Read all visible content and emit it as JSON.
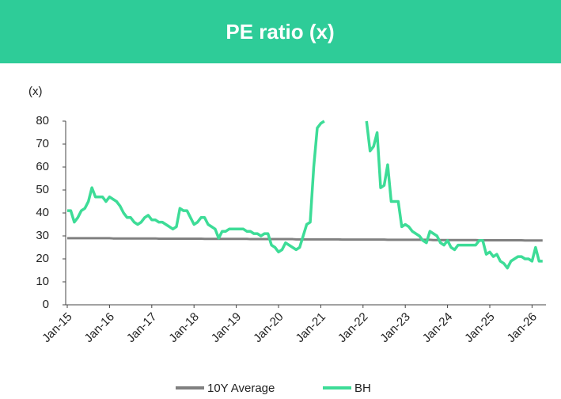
{
  "chart_data": {
    "type": "line",
    "title": "PE ratio (x)",
    "y_label": "(x)",
    "categories": [
      "Jan-15",
      null,
      null,
      null,
      null,
      null,
      null,
      null,
      null,
      null,
      null,
      null,
      "Jan-16",
      null,
      null,
      null,
      null,
      null,
      null,
      null,
      null,
      null,
      null,
      null,
      "Jan-17",
      null,
      null,
      null,
      null,
      null,
      null,
      null,
      null,
      null,
      null,
      null,
      "Jan-18",
      null,
      null,
      null,
      null,
      null,
      null,
      null,
      null,
      null,
      null,
      null,
      "Jan-19",
      null,
      null,
      null,
      null,
      null,
      null,
      null,
      null,
      null,
      null,
      null,
      "Jan-20",
      null,
      null,
      null,
      null,
      null,
      null,
      null,
      null,
      null,
      null,
      null,
      "Jan-21",
      null,
      null,
      null,
      null,
      null,
      null,
      null,
      null,
      null,
      null,
      null,
      "Jan-22",
      null,
      null,
      null,
      null,
      null,
      null,
      null,
      null,
      null,
      null,
      null,
      "Jan-23",
      null,
      null,
      null,
      null,
      null,
      null,
      null,
      null,
      null,
      null,
      null,
      "Jan-24",
      null,
      null,
      null,
      null,
      null,
      null,
      null,
      null,
      null,
      null,
      null,
      "Jan-25",
      null,
      null,
      null,
      null,
      null,
      null,
      null,
      null,
      null,
      null,
      null,
      "Jan-26",
      null,
      null,
      null
    ],
    "series": [
      {
        "name": "10Y Average",
        "color": "#808080",
        "values": [
          29,
          29,
          29,
          29,
          29,
          29,
          29,
          29,
          29,
          29,
          29,
          29,
          29,
          28.9,
          28.9,
          28.9,
          28.9,
          28.9,
          28.9,
          28.9,
          28.9,
          28.9,
          28.9,
          28.9,
          28.9,
          28.9,
          28.8,
          28.8,
          28.8,
          28.8,
          28.8,
          28.8,
          28.8,
          28.8,
          28.8,
          28.8,
          28.8,
          28.8,
          28.8,
          28.7,
          28.7,
          28.7,
          28.7,
          28.7,
          28.7,
          28.7,
          28.7,
          28.7,
          28.7,
          28.7,
          28.7,
          28.7,
          28.6,
          28.6,
          28.6,
          28.6,
          28.6,
          28.6,
          28.6,
          28.6,
          28.6,
          28.6,
          28.6,
          28.6,
          28.6,
          28.5,
          28.5,
          28.5,
          28.5,
          28.5,
          28.5,
          28.5,
          28.5,
          28.5,
          28.5,
          28.5,
          28.5,
          28.5,
          28.4,
          28.4,
          28.4,
          28.4,
          28.4,
          28.4,
          28.4,
          28.4,
          28.4,
          28.4,
          28.4,
          28.4,
          28.4,
          28.3,
          28.3,
          28.3,
          28.3,
          28.3,
          28.3,
          28.3,
          28.3,
          28.3,
          28.3,
          28.3,
          28.3,
          28.3,
          28.2,
          28.2,
          28.2,
          28.2,
          28.2,
          28.2,
          28.2,
          28.2,
          28.2,
          28.2,
          28.2,
          28.2,
          28.2,
          28.1,
          28.1,
          28.1,
          28.1,
          28.1,
          28.1,
          28.1,
          28.1,
          28.1,
          28.1,
          28.1,
          28.1,
          28.1,
          28,
          28,
          28,
          28,
          28,
          28
        ]
      },
      {
        "name": "BH",
        "color": "#3ddc97",
        "values": [
          41,
          41,
          36,
          38,
          41,
          42,
          45,
          51,
          47,
          47,
          47,
          45,
          47,
          46,
          45,
          43,
          40,
          38,
          38,
          36,
          35,
          36,
          38,
          39,
          37,
          37,
          36,
          36,
          35,
          34,
          33,
          34,
          42,
          41,
          41,
          38,
          35,
          36,
          38,
          38,
          35,
          34,
          33,
          29,
          32,
          32,
          33,
          33,
          33,
          33,
          33,
          32,
          32,
          31,
          31,
          30,
          31,
          31,
          26,
          25,
          23,
          24,
          27,
          26,
          25,
          24,
          25,
          30,
          35,
          36,
          60,
          77,
          79,
          80,
          null,
          null,
          null,
          null,
          null,
          null,
          null,
          null,
          null,
          null,
          null,
          80,
          67,
          69,
          75,
          51,
          52,
          61,
          45,
          45,
          45,
          34,
          35,
          34,
          32,
          31,
          30,
          28,
          27,
          32,
          31,
          30,
          27,
          26,
          28,
          25,
          24,
          26,
          26,
          26,
          26,
          26,
          26,
          28,
          28,
          22,
          23,
          21,
          22,
          19,
          18,
          16,
          19,
          20,
          21,
          21,
          20,
          20,
          19,
          25,
          19,
          19
        ]
      }
    ],
    "ylim": [
      0,
      80
    ],
    "yticks": [
      0,
      10,
      20,
      30,
      40,
      50,
      60,
      70,
      80
    ]
  }
}
